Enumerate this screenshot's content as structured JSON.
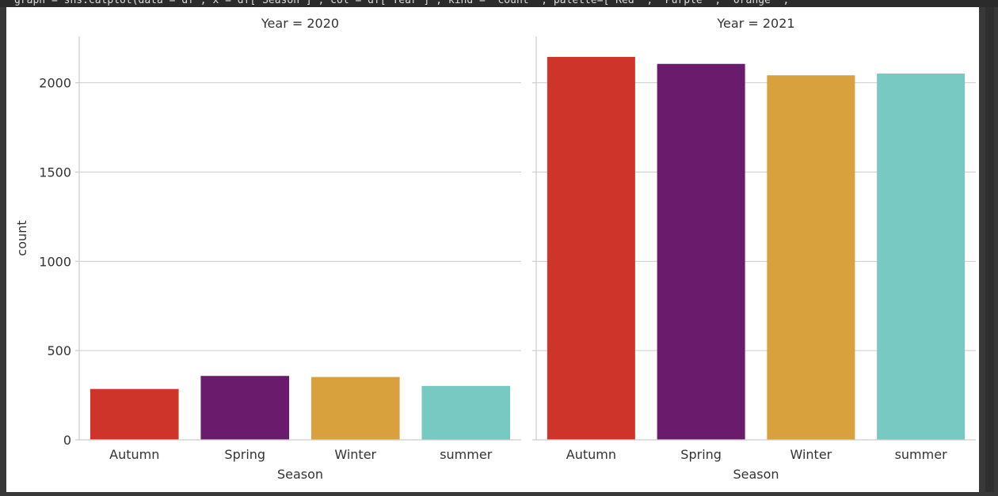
{
  "code_line": "graph = sns.catplot(data = df , x = df[\"Season\"] , col = df[\"Year\"] , kind = \"count\" , palette=[\"Red\" , \"Purple\" , \"Orange\" , \"",
  "chart_data": {
    "type": "bar",
    "categories": [
      "Autumn",
      "Spring",
      "Winter",
      "summer"
    ],
    "colors": [
      "#cf342b",
      "#6a1b6b",
      "#d9a03e",
      "#78c9c1"
    ],
    "ylabel": "count",
    "xlabel": "Season",
    "ylim": [
      0,
      2260
    ],
    "yticks": [
      0,
      500,
      1000,
      1500,
      2000
    ],
    "grid": "horizontal",
    "facets": [
      {
        "title": "Year = 2020",
        "values": [
          285,
          358,
          352,
          302
        ]
      },
      {
        "title": "Year = 2021",
        "values": [
          2145,
          2106,
          2042,
          2052
        ]
      }
    ]
  }
}
